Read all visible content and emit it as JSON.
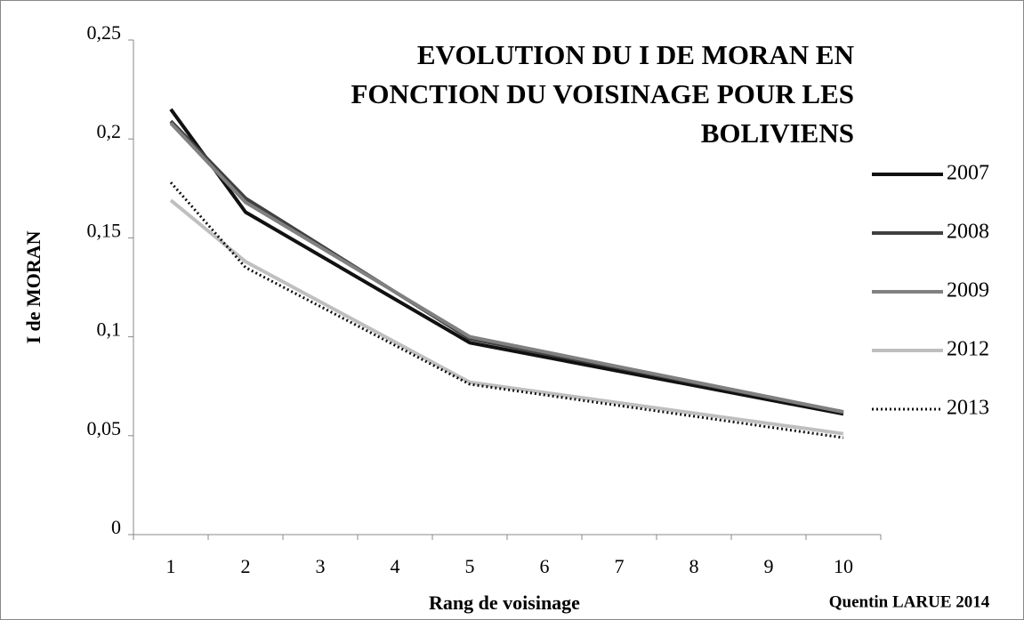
{
  "chart_data": {
    "type": "line",
    "title": "EVOLUTION DU I DE MORAN EN FONCTION DU VOISINAGE POUR LES BOLIVIENS",
    "x_label": "Rang de voisinage",
    "y_label": "I de MORAN",
    "credit": "Quentin LARUE 2014",
    "x": [
      1,
      2,
      5,
      10
    ],
    "xlim": [
      0.5,
      10.5
    ],
    "xticks": [
      1,
      2,
      3,
      4,
      5,
      6,
      7,
      8,
      9,
      10
    ],
    "ylim": [
      0,
      0.25
    ],
    "yticks": [
      0,
      {
        "value": 0.05,
        "label": "0,05"
      },
      {
        "value": 0.1,
        "label": "0,1"
      },
      {
        "value": 0.15,
        "label": "0,15"
      },
      {
        "value": 0.2,
        "label": "0,2"
      },
      {
        "value": 0.25,
        "label": "0,25"
      }
    ],
    "legend": "right",
    "series": [
      {
        "name": "2007",
        "color": "#111111",
        "values": [
          0.215,
          0.163,
          0.097,
          0.061
        ]
      },
      {
        "name": "2008",
        "color": "#404040",
        "values": [
          0.209,
          0.17,
          0.099,
          0.062
        ]
      },
      {
        "name": "2009",
        "color": "#808080",
        "values": [
          0.208,
          0.168,
          0.1,
          0.062
        ]
      },
      {
        "name": "2012",
        "color": "#bfbfbf",
        "values": [
          0.169,
          0.138,
          0.077,
          0.051
        ]
      },
      {
        "name": "2013",
        "color": "#111111",
        "style": "dotted",
        "values": [
          0.178,
          0.135,
          0.076,
          0.049
        ]
      }
    ]
  }
}
